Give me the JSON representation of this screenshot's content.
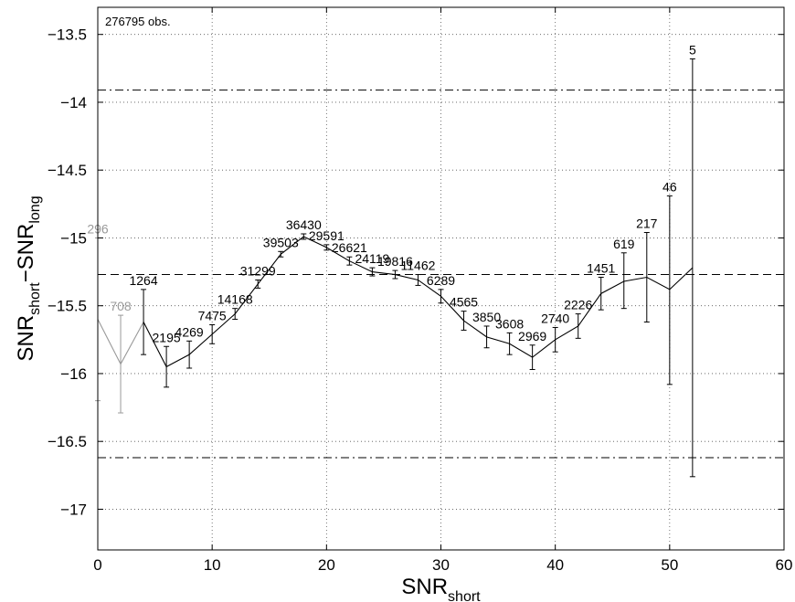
{
  "chart_data": {
    "type": "line",
    "annotation_text": "276795 obs.",
    "xlabel": {
      "main": "SNR",
      "sub": "short"
    },
    "ylabel": {
      "main1": "SNR",
      "sub1": "short",
      "mid": "−SNR",
      "sub2": "long"
    },
    "xlim": [
      0,
      60
    ],
    "ylim": [
      -17.3,
      -13.3
    ],
    "xticks": [
      0,
      10,
      20,
      30,
      40,
      50,
      60
    ],
    "xtick_labels": [
      "0",
      "10",
      "20",
      "30",
      "40",
      "50",
      "60"
    ],
    "yticks": [
      -13.5,
      -14,
      -14.5,
      -15,
      -15.5,
      -16,
      -16.5,
      -17
    ],
    "ytick_labels": [
      "−13.5",
      "−14",
      "−14.5",
      "−15",
      "−15.5",
      "−16",
      "−16.5",
      "−17"
    ],
    "grid": true,
    "reference_lines": [
      {
        "style": "dashdot",
        "y": -13.91
      },
      {
        "style": "dashed",
        "y": -15.27
      },
      {
        "style": "dashdot",
        "y": -16.62
      }
    ],
    "series": [
      {
        "color": "#999999",
        "points": [
          {
            "x": 0,
            "y": -15.6,
            "lo": -16.2,
            "hi": -15.0,
            "n": "296"
          },
          {
            "x": 2,
            "y": -15.93,
            "lo": -16.29,
            "hi": -15.57,
            "n": "708"
          },
          {
            "x": 4,
            "y": -15.62
          }
        ]
      },
      {
        "color": "#000000",
        "points": [
          {
            "x": 4,
            "y": -15.62,
            "lo": -15.86,
            "hi": -15.38,
            "n": "1264"
          },
          {
            "x": 6,
            "y": -15.95,
            "lo": -16.1,
            "hi": -15.8,
            "n": "2195"
          },
          {
            "x": 8,
            "y": -15.86,
            "lo": -15.96,
            "hi": -15.76,
            "n": "4269"
          },
          {
            "x": 10,
            "y": -15.71,
            "lo": -15.78,
            "hi": -15.64,
            "n": "7475"
          },
          {
            "x": 12,
            "y": -15.56,
            "lo": -15.6,
            "hi": -15.52,
            "n": "14168"
          },
          {
            "x": 14,
            "y": -15.34,
            "lo": -15.37,
            "hi": -15.31,
            "n": "31299"
          },
          {
            "x": 16,
            "y": -15.12,
            "lo": -15.14,
            "hi": -15.1,
            "n": "39503"
          },
          {
            "x": 18,
            "y": -14.99,
            "lo": -15.01,
            "hi": -14.97,
            "n": "36430"
          },
          {
            "x": 20,
            "y": -15.07,
            "lo": -15.09,
            "hi": -15.05,
            "n": "29591"
          },
          {
            "x": 22,
            "y": -15.17,
            "lo": -15.2,
            "hi": -15.14,
            "n": "26621"
          },
          {
            "x": 24,
            "y": -15.25,
            "lo": -15.28,
            "hi": -15.22,
            "n": "24119"
          },
          {
            "x": 26,
            "y": -15.27,
            "lo": -15.3,
            "hi": -15.24,
            "n": "19816"
          },
          {
            "x": 28,
            "y": -15.31,
            "lo": -15.35,
            "hi": -15.27,
            "n": "11462"
          },
          {
            "x": 30,
            "y": -15.43,
            "lo": -15.48,
            "hi": -15.38,
            "n": "6289"
          },
          {
            "x": 32,
            "y": -15.61,
            "lo": -15.68,
            "hi": -15.54,
            "n": "4565"
          },
          {
            "x": 34,
            "y": -15.73,
            "lo": -15.81,
            "hi": -15.65,
            "n": "3850"
          },
          {
            "x": 36,
            "y": -15.78,
            "lo": -15.86,
            "hi": -15.7,
            "n": "3608"
          },
          {
            "x": 38,
            "y": -15.88,
            "lo": -15.97,
            "hi": -15.79,
            "n": "2969"
          },
          {
            "x": 40,
            "y": -15.75,
            "lo": -15.84,
            "hi": -15.66,
            "n": "2740"
          },
          {
            "x": 42,
            "y": -15.65,
            "lo": -15.74,
            "hi": -15.56,
            "n": "2226"
          },
          {
            "x": 44,
            "y": -15.41,
            "lo": -15.53,
            "hi": -15.29,
            "n": "1451"
          },
          {
            "x": 46,
            "y": -15.32,
            "lo": -15.52,
            "hi": -15.11,
            "n": "619"
          },
          {
            "x": 48,
            "y": -15.29,
            "lo": -15.62,
            "hi": -14.96,
            "n": "217"
          },
          {
            "x": 50,
            "y": -15.38,
            "lo": -16.08,
            "hi": -14.69,
            "n": "46"
          },
          {
            "x": 52,
            "y": -15.22,
            "lo": -16.76,
            "hi": -13.68,
            "n": "5"
          }
        ]
      }
    ]
  }
}
